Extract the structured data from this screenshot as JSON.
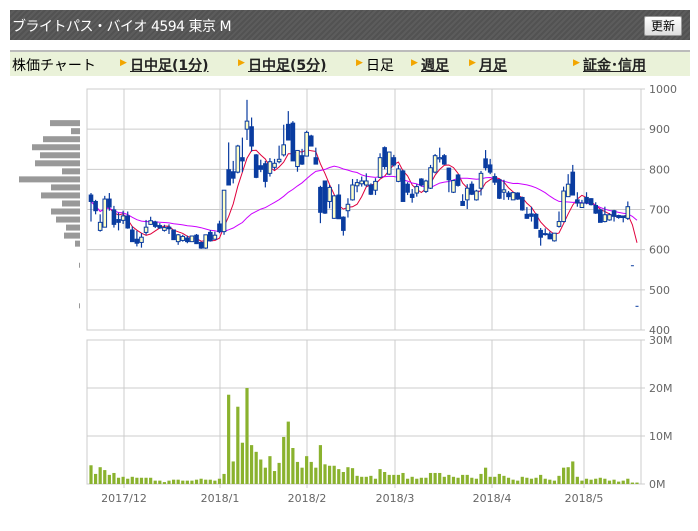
{
  "header": {
    "title": "ブライトパス・バイオ 4594 東京 M",
    "refresh_label": "更新"
  },
  "nav": {
    "label": "株価チャート",
    "items": [
      {
        "label": "日中足(1分)",
        "link": true
      },
      {
        "label": "日中足(5分)",
        "link": true
      },
      {
        "label": "日足",
        "link": false
      },
      {
        "label": "週足",
        "link": true
      },
      {
        "label": "月足",
        "link": true
      },
      {
        "label": "証金･信用",
        "link": true
      }
    ]
  },
  "colors": {
    "candle": "#0a3ca0",
    "candle_up_fill": "#ffffc8",
    "ma_short": "#e0003c",
    "ma_long": "#cc00ff",
    "volume": "#8ab22e",
    "profile": "#999999",
    "grid": "#cccccc"
  },
  "chart_data": [
    {
      "type": "candlestick",
      "ylim": [
        400,
        1000
      ],
      "yticks": [
        "1000",
        "900",
        "800",
        "700",
        "600",
        "500",
        "400"
      ],
      "xticks": [
        "2017/12",
        "2018/1",
        "2018/2",
        "2018/3",
        "2018/4",
        "2018/5"
      ],
      "moving_averages": [
        {
          "period": 5,
          "color": "#e0003c"
        },
        {
          "period": 25,
          "color": "#cc00ff"
        }
      ],
      "ohlc": [
        [
          736,
          741,
          670,
          720
        ],
        [
          720,
          724,
          688,
          697
        ],
        [
          648,
          688,
          645,
          668
        ],
        [
          656,
          734,
          656,
          726
        ],
        [
          726,
          741,
          697,
          706
        ],
        [
          699,
          709,
          655,
          663
        ],
        [
          675,
          692,
          648,
          668
        ],
        [
          673,
          697,
          664,
          684
        ],
        [
          684,
          695,
          652,
          654
        ],
        [
          649,
          658,
          620,
          620
        ],
        [
          626,
          647,
          608,
          616
        ],
        [
          618,
          641,
          605,
          631
        ],
        [
          643,
          674,
          637,
          656
        ],
        [
          663,
          682,
          662,
          672
        ],
        [
          669,
          672,
          654,
          658
        ],
        [
          660,
          666,
          652,
          654
        ],
        [
          648,
          662,
          645,
          655
        ],
        [
          656,
          663,
          639,
          652
        ],
        [
          649,
          650,
          625,
          625
        ],
        [
          620,
          639,
          612,
          637
        ],
        [
          623,
          637,
          620,
          633
        ],
        [
          629,
          635,
          616,
          620
        ],
        [
          620,
          635,
          619,
          634
        ],
        [
          636,
          639,
          614,
          615
        ],
        [
          618,
          620,
          602,
          604
        ],
        [
          604,
          637,
          602,
          637
        ],
        [
          643,
          649,
          620,
          622
        ],
        [
          626,
          645,
          626,
          636
        ],
        [
          664,
          672,
          641,
          645
        ],
        [
          645,
          748,
          637,
          748
        ],
        [
          799,
          867,
          760,
          761
        ],
        [
          794,
          821,
          765,
          778
        ],
        [
          793,
          861,
          790,
          858
        ],
        [
          829,
          879,
          793,
          821
        ],
        [
          900,
          973,
          873,
          920
        ],
        [
          906,
          929,
          844,
          858
        ],
        [
          836,
          838,
          778,
          780
        ],
        [
          809,
          824,
          793,
          800
        ],
        [
          814,
          821,
          755,
          770
        ],
        [
          790,
          828,
          782,
          819
        ],
        [
          805,
          826,
          799,
          815
        ],
        [
          819,
          859,
          815,
          825
        ],
        [
          836,
          911,
          832,
          861
        ],
        [
          912,
          945,
          872,
          873
        ],
        [
          915,
          920,
          821,
          821
        ],
        [
          807,
          848,
          794,
          847
        ],
        [
          834,
          851,
          811,
          813
        ],
        [
          833,
          896,
          832,
          892
        ],
        [
          883,
          886,
          857,
          858
        ],
        [
          829,
          854,
          813,
          813
        ],
        [
          755,
          759,
          666,
          693
        ],
        [
          771,
          771,
          689,
          691
        ],
        [
          720,
          761,
          703,
          755
        ],
        [
          678,
          735,
          677,
          734
        ],
        [
          736,
          763,
          677,
          677
        ],
        [
          681,
          683,
          635,
          648
        ],
        [
          697,
          728,
          680,
          713
        ],
        [
          724,
          776,
          722,
          761
        ],
        [
          759,
          776,
          743,
          767
        ],
        [
          764,
          782,
          757,
          771
        ],
        [
          761,
          790,
          757,
          771
        ],
        [
          761,
          765,
          736,
          738
        ],
        [
          748,
          778,
          736,
          770
        ],
        [
          780,
          840,
          778,
          829
        ],
        [
          854,
          857,
          800,
          807
        ],
        [
          788,
          844,
          786,
          843
        ],
        [
          829,
          836,
          807,
          811
        ],
        [
          770,
          811,
          768,
          801
        ],
        [
          796,
          799,
          720,
          720
        ],
        [
          763,
          768,
          736,
          743
        ],
        [
          738,
          751,
          717,
          730
        ],
        [
          741,
          763,
          732,
          757
        ],
        [
          776,
          778,
          757,
          761
        ],
        [
          745,
          774,
          741,
          771
        ],
        [
          753,
          811,
          751,
          804
        ],
        [
          793,
          838,
          790,
          834
        ],
        [
          826,
          854,
          817,
          829
        ],
        [
          834,
          838,
          811,
          813
        ],
        [
          803,
          804,
          743,
          774
        ],
        [
          743,
          774,
          741,
          772
        ],
        [
          786,
          788,
          757,
          760
        ],
        [
          720,
          738,
          710,
          710
        ],
        [
          724,
          763,
          701,
          753
        ],
        [
          763,
          770,
          736,
          738
        ],
        [
          724,
          749,
          722,
          746
        ],
        [
          753,
          796,
          735,
          790
        ],
        [
          826,
          848,
          797,
          804
        ],
        [
          811,
          826,
          788,
          793
        ],
        [
          782,
          790,
          761,
          768
        ],
        [
          774,
          776,
          726,
          728
        ],
        [
          743,
          774,
          724,
          749
        ],
        [
          741,
          746,
          724,
          732
        ],
        [
          724,
          743,
          724,
          742
        ],
        [
          741,
          743,
          724,
          726
        ],
        [
          730,
          732,
          697,
          699
        ],
        [
          688,
          706,
          677,
          678
        ],
        [
          689,
          707,
          670,
          683
        ],
        [
          688,
          691,
          652,
          653
        ],
        [
          648,
          654,
          610,
          631
        ],
        [
          640,
          653,
          635,
          639
        ],
        [
          639,
          645,
          626,
          627
        ],
        [
          622,
          641,
          620,
          641
        ],
        [
          658,
          695,
          655,
          670
        ],
        [
          670,
          757,
          668,
          746
        ],
        [
          732,
          788,
          731,
          763
        ],
        [
          793,
          811,
          735,
          736
        ],
        [
          724,
          743,
          707,
          716
        ],
        [
          705,
          724,
          705,
          716
        ],
        [
          730,
          743,
          713,
          716
        ],
        [
          727,
          728,
          710,
          712
        ],
        [
          710,
          718,
          689,
          691
        ],
        [
          699,
          702,
          668,
          668
        ],
        [
          670,
          707,
          668,
          687
        ],
        [
          674,
          691,
          672,
          687
        ],
        [
          697,
          699,
          670,
          683
        ],
        [
          685,
          687,
          677,
          680
        ],
        [
          684,
          684,
          668,
          680
        ],
        [
          678,
          720,
          674,
          707
        ],
        [
          560,
          560,
          560,
          560
        ],
        [
          459,
          459,
          459,
          459
        ]
      ],
      "volume_profile": [
        {
          "price": 915,
          "v": 30
        },
        {
          "price": 895,
          "v": 9
        },
        {
          "price": 875,
          "v": 37
        },
        {
          "price": 855,
          "v": 48
        },
        {
          "price": 835,
          "v": 40
        },
        {
          "price": 815,
          "v": 45
        },
        {
          "price": 795,
          "v": 18
        },
        {
          "price": 775,
          "v": 61
        },
        {
          "price": 755,
          "v": 29
        },
        {
          "price": 735,
          "v": 39
        },
        {
          "price": 715,
          "v": 18
        },
        {
          "price": 695,
          "v": 29
        },
        {
          "price": 675,
          "v": 24
        },
        {
          "price": 655,
          "v": 14
        },
        {
          "price": 635,
          "v": 16
        },
        {
          "price": 615,
          "v": 5
        },
        {
          "price": 560,
          "v": 0.5
        },
        {
          "price": 459,
          "v": 0.5
        }
      ]
    },
    {
      "type": "bar",
      "ylim": [
        0,
        30
      ],
      "yticks": [
        "30M",
        "20M",
        "10M",
        "0M"
      ],
      "unit": "M",
      "values": [
        3.9,
        2.1,
        3.5,
        2.9,
        1.9,
        2.3,
        1.3,
        1.5,
        1.1,
        1.5,
        1.3,
        1.3,
        1.3,
        1.3,
        0.7,
        0.7,
        0.4,
        0.7,
        0.9,
        0.9,
        0.7,
        0.7,
        0.7,
        0.9,
        1.1,
        0.9,
        0.9,
        0.7,
        1.1,
        2.1,
        18.6,
        4.7,
        16.1,
        8.6,
        20,
        8.1,
        6.7,
        5.1,
        3.4,
        5.8,
        2.7,
        4.4,
        9.8,
        13,
        7.5,
        4.6,
        3.4,
        5.8,
        4.6,
        3.4,
        8.1,
        4.1,
        3.8,
        3.8,
        3.1,
        2.5,
        3.5,
        3.3,
        1.7,
        1.5,
        1.5,
        1.7,
        1.1,
        3.1,
        2.5,
        1.9,
        1.9,
        1.9,
        2.3,
        1.1,
        1.5,
        1.1,
        1.3,
        1.3,
        2.3,
        2.3,
        2.3,
        1.5,
        1.9,
        1.5,
        1.3,
        1.9,
        1.9,
        1.3,
        1.1,
        2.1,
        3.4,
        1.5,
        1.5,
        2.1,
        1.7,
        1.3,
        0.9,
        0.7,
        1.5,
        1.3,
        1.1,
        1.3,
        1.9,
        1.1,
        0.9,
        0.7,
        1.7,
        3.4,
        3.5,
        4.7,
        1.5,
        0.7,
        1.1,
        0.9,
        1.1,
        1.3,
        1.1,
        0.7,
        0.9,
        0.5,
        0.7,
        1.1,
        0.3,
        0.3
      ]
    }
  ]
}
